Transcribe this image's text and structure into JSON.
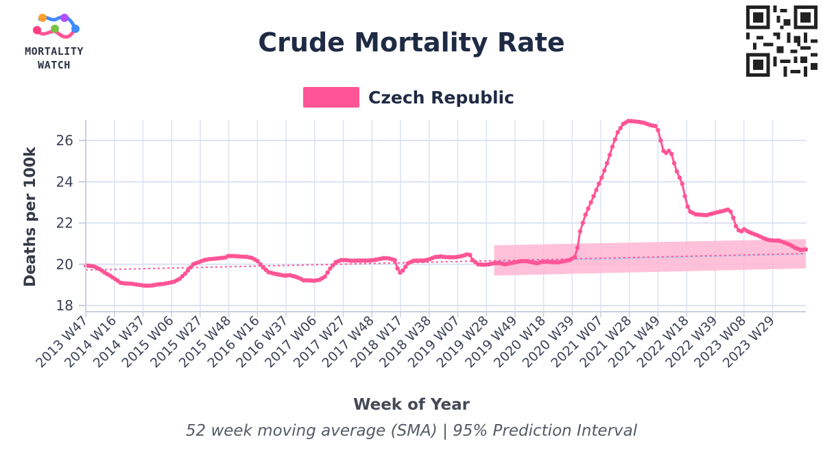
{
  "logo": {
    "line1": "MORTALITY",
    "line2": "WATCH"
  },
  "chart_data": {
    "type": "line",
    "title": "Crude Mortality Rate",
    "subtitle": "52 week moving average (SMA) | 95% Prediction Interval",
    "xlabel": "Week of Year",
    "ylabel": "Deaths per 100k",
    "ylim": [
      17.7,
      27.0
    ],
    "yticks": [
      18,
      20,
      22,
      24,
      26
    ],
    "xticks": [
      "2013 W47",
      "2014 W16",
      "2014 W37",
      "2015 W06",
      "2015 W27",
      "2015 W48",
      "2016 W16",
      "2016 W37",
      "2017 W06",
      "2017 W27",
      "2017 W48",
      "2018 W17",
      "2018 W38",
      "2019 W07",
      "2019 W28",
      "2019 W49",
      "2020 W18",
      "2020 W39",
      "2021 W07",
      "2021 W28",
      "2021 W49",
      "2022 W18",
      "2022 W39",
      "2023 W08",
      "2023 W29"
    ],
    "grid": true,
    "legend_position": "top",
    "x_index_note_unused": "",
    "series": [
      {
        "name": "Czech Republic",
        "color": "#ff5495",
        "points": [
          [
            0,
            19.95
          ],
          [
            3,
            19.9
          ],
          [
            5,
            19.78
          ],
          [
            7,
            19.6
          ],
          [
            9,
            19.45
          ],
          [
            11,
            19.28
          ],
          [
            13,
            19.1
          ],
          [
            15,
            19.07
          ],
          [
            17,
            19.06
          ],
          [
            19,
            19.02
          ],
          [
            21,
            18.98
          ],
          [
            23,
            18.96
          ],
          [
            25,
            18.98
          ],
          [
            27,
            19.03
          ],
          [
            29,
            19.05
          ],
          [
            31,
            19.1
          ],
          [
            33,
            19.16
          ],
          [
            35,
            19.3
          ],
          [
            37,
            19.55
          ],
          [
            39,
            19.85
          ],
          [
            40,
            20.0
          ],
          [
            42,
            20.1
          ],
          [
            44,
            20.2
          ],
          [
            46,
            20.25
          ],
          [
            48,
            20.27
          ],
          [
            50,
            20.3
          ],
          [
            52,
            20.33
          ],
          [
            53,
            20.4
          ],
          [
            55,
            20.4
          ],
          [
            58,
            20.37
          ],
          [
            60,
            20.36
          ],
          [
            62,
            20.3
          ],
          [
            64,
            20.15
          ],
          [
            66,
            19.85
          ],
          [
            68,
            19.62
          ],
          [
            70,
            19.55
          ],
          [
            72,
            19.5
          ],
          [
            74,
            19.45
          ],
          [
            76,
            19.47
          ],
          [
            78,
            19.4
          ],
          [
            80,
            19.3
          ],
          [
            81,
            19.22
          ],
          [
            83,
            19.22
          ],
          [
            85,
            19.2
          ],
          [
            87,
            19.25
          ],
          [
            89,
            19.4
          ],
          [
            91,
            19.8
          ],
          [
            93,
            20.1
          ],
          [
            95,
            20.2
          ],
          [
            97,
            20.2
          ],
          [
            99,
            20.17
          ],
          [
            101,
            20.18
          ],
          [
            103,
            20.18
          ],
          [
            105,
            20.18
          ],
          [
            107,
            20.2
          ],
          [
            109,
            20.25
          ],
          [
            111,
            20.3
          ],
          [
            113,
            20.28
          ],
          [
            115,
            20.2
          ],
          [
            116,
            19.8
          ],
          [
            117,
            19.6
          ],
          [
            118,
            19.7
          ],
          [
            120,
            20.05
          ],
          [
            122,
            20.17
          ],
          [
            124,
            20.18
          ],
          [
            126,
            20.18
          ],
          [
            128,
            20.25
          ],
          [
            130,
            20.35
          ],
          [
            132,
            20.38
          ],
          [
            134,
            20.35
          ],
          [
            136,
            20.34
          ],
          [
            138,
            20.35
          ],
          [
            140,
            20.4
          ],
          [
            142,
            20.48
          ],
          [
            143,
            20.45
          ],
          [
            144,
            20.2
          ],
          [
            146,
            20.0
          ],
          [
            148,
            19.98
          ],
          [
            150,
            20.0
          ],
          [
            152,
            20.05
          ],
          [
            154,
            20.06
          ],
          [
            156,
            20.0
          ],
          [
            158,
            20.05
          ],
          [
            160,
            20.1
          ],
          [
            162,
            20.15
          ],
          [
            164,
            20.15
          ],
          [
            166,
            20.1
          ],
          [
            168,
            20.05
          ],
          [
            170,
            20.12
          ],
          [
            172,
            20.12
          ],
          [
            174,
            20.1
          ],
          [
            176,
            20.1
          ],
          [
            178,
            20.15
          ],
          [
            180,
            20.2
          ],
          [
            182,
            20.35
          ],
          [
            183,
            20.8
          ],
          [
            184,
            21.6
          ],
          [
            186,
            22.4
          ],
          [
            188,
            23.0
          ],
          [
            190,
            23.6
          ],
          [
            192,
            24.2
          ],
          [
            194,
            24.9
          ],
          [
            196,
            25.7
          ],
          [
            198,
            26.4
          ],
          [
            200,
            26.8
          ],
          [
            202,
            26.95
          ],
          [
            204,
            26.93
          ],
          [
            206,
            26.9
          ],
          [
            208,
            26.85
          ],
          [
            210,
            26.75
          ],
          [
            212,
            26.7
          ],
          [
            213,
            26.5
          ],
          [
            214,
            26.0
          ],
          [
            215,
            25.5
          ],
          [
            216,
            25.4
          ],
          [
            217,
            25.5
          ],
          [
            218,
            25.35
          ],
          [
            219,
            24.9
          ],
          [
            220,
            24.5
          ],
          [
            222,
            23.9
          ],
          [
            223,
            23.3
          ],
          [
            224,
            22.8
          ],
          [
            225,
            22.55
          ],
          [
            227,
            22.42
          ],
          [
            229,
            22.4
          ],
          [
            231,
            22.38
          ],
          [
            233,
            22.45
          ],
          [
            235,
            22.52
          ],
          [
            237,
            22.58
          ],
          [
            239,
            22.65
          ],
          [
            240,
            22.55
          ],
          [
            241,
            22.25
          ],
          [
            242,
            21.85
          ],
          [
            243,
            21.65
          ],
          [
            244,
            21.6
          ],
          [
            245,
            21.7
          ],
          [
            246,
            21.62
          ],
          [
            248,
            21.5
          ],
          [
            250,
            21.4
          ],
          [
            252,
            21.28
          ],
          [
            254,
            21.18
          ],
          [
            256,
            21.15
          ],
          [
            258,
            21.15
          ],
          [
            260,
            21.05
          ],
          [
            262,
            20.95
          ],
          [
            264,
            20.8
          ],
          [
            266,
            20.7
          ],
          [
            268,
            20.72
          ]
        ],
        "trend": {
          "x": [
            0,
            268
          ],
          "y": [
            19.72,
            20.52
          ]
        }
      }
    ],
    "prediction_interval": {
      "x": [
        152,
        268
      ],
      "lower": [
        19.45,
        19.8
      ],
      "upper": [
        20.92,
        21.22
      ],
      "mid": [
        20.13,
        20.5
      ],
      "color": "#ffb6d2"
    },
    "x_max_index": 268
  }
}
